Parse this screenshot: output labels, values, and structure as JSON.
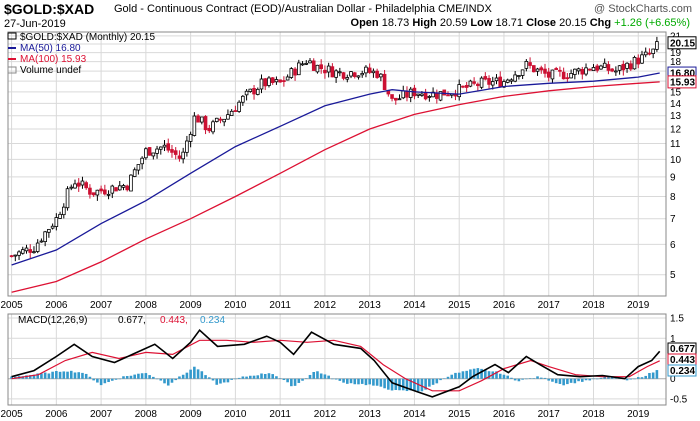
{
  "header": {
    "symbol": "$GOLD:$XAD",
    "description": "Gold - Continuous Contract (EOD)/Australian Dollar - Philadelphia CME/INDX",
    "watermark": "@ StockCharts.com",
    "date": "27-Jun-2019",
    "open_label": "Open",
    "open": "18.73",
    "high_label": "High",
    "high": "20.59",
    "low_label": "Low",
    "low": "18.71",
    "close_label": "Close",
    "close": "20.15",
    "chg_label": "Chg",
    "chg": "+1.26 (+6.65%)"
  },
  "legend": {
    "price": "$GOLD:$XAD (Monthly) 20.15",
    "ma50": "MA(50) 16.80",
    "ma100": "MA(100) 15.93",
    "volume": "Volume undef"
  },
  "macd_legend": {
    "label": "MACD(12,26,9)",
    "macd": "0.677,",
    "signal": "0.443,",
    "hist": "0.234"
  },
  "colors": {
    "ma50": "#1a1a99",
    "ma100": "#dd1133",
    "up": "#000000",
    "down": "#cc1133",
    "hist": "#3399cc",
    "grid": "#d9d9d9"
  },
  "chart_data": [
    {
      "type": "candlestick",
      "title": "$GOLD:$XAD (Monthly) 20.15",
      "x_ticks": [
        "2005",
        "2006",
        "2007",
        "2008",
        "2009",
        "2010",
        "2011",
        "2012",
        "2013",
        "2014",
        "2015",
        "2016",
        "2017",
        "2018",
        "2019"
      ],
      "y_ticks": [
        5,
        6,
        7,
        8,
        9,
        10,
        11,
        12,
        13,
        14,
        15,
        16,
        17,
        18,
        19,
        20,
        21
      ],
      "ylim": [
        4.4,
        21.5
      ],
      "y_scale": "log",
      "anchors_close": [
        [
          2005.0,
          5.6
        ],
        [
          2005.5,
          5.9
        ],
        [
          2006.0,
          7.0
        ],
        [
          2006.4,
          8.8
        ],
        [
          2006.8,
          8.2
        ],
        [
          2007.2,
          8.4
        ],
        [
          2007.6,
          8.6
        ],
        [
          2008.0,
          10.5
        ],
        [
          2008.4,
          10.8
        ],
        [
          2008.8,
          10.0
        ],
        [
          2009.1,
          13.0
        ],
        [
          2009.4,
          12.0
        ],
        [
          2009.8,
          13.0
        ],
        [
          2010.2,
          14.5
        ],
        [
          2010.6,
          15.8
        ],
        [
          2011.0,
          15.8
        ],
        [
          2011.6,
          18.2
        ],
        [
          2011.8,
          17.5
        ],
        [
          2012.3,
          16.8
        ],
        [
          2012.8,
          17.0
        ],
        [
          2013.2,
          16.8
        ],
        [
          2013.5,
          14.2
        ],
        [
          2014.0,
          15.0
        ],
        [
          2014.5,
          14.8
        ],
        [
          2015.0,
          15.2
        ],
        [
          2015.5,
          15.8
        ],
        [
          2016.0,
          16.0
        ],
        [
          2016.5,
          17.6
        ],
        [
          2017.0,
          16.5
        ],
        [
          2017.5,
          16.8
        ],
        [
          2018.0,
          17.5
        ],
        [
          2018.5,
          17.0
        ],
        [
          2019.0,
          18.2
        ],
        [
          2019.3,
          18.9
        ],
        [
          2019.48,
          20.15
        ]
      ],
      "ma50": [
        [
          2005.0,
          5.3
        ],
        [
          2006.0,
          5.8
        ],
        [
          2007.0,
          6.8
        ],
        [
          2008.0,
          7.8
        ],
        [
          2009.0,
          9.2
        ],
        [
          2010.0,
          10.8
        ],
        [
          2011.0,
          12.2
        ],
        [
          2012.0,
          13.8
        ],
        [
          2013.0,
          14.8
        ],
        [
          2013.5,
          15.2
        ],
        [
          2014.0,
          15.0
        ],
        [
          2015.0,
          14.8
        ],
        [
          2016.0,
          15.5
        ],
        [
          2017.0,
          15.8
        ],
        [
          2018.0,
          16.0
        ],
        [
          2019.0,
          16.4
        ],
        [
          2019.48,
          16.8
        ]
      ],
      "ma100": [
        [
          2005.0,
          4.5
        ],
        [
          2006.0,
          4.8
        ],
        [
          2007.0,
          5.4
        ],
        [
          2008.0,
          6.2
        ],
        [
          2009.0,
          7.0
        ],
        [
          2010.0,
          8.0
        ],
        [
          2011.0,
          9.2
        ],
        [
          2012.0,
          10.6
        ],
        [
          2013.0,
          12.0
        ],
        [
          2014.0,
          13.1
        ],
        [
          2015.0,
          13.9
        ],
        [
          2016.0,
          14.6
        ],
        [
          2017.0,
          15.1
        ],
        [
          2018.0,
          15.5
        ],
        [
          2019.0,
          15.8
        ],
        [
          2019.48,
          15.93
        ]
      ],
      "last_labels": [
        {
          "value": "20.15",
          "color": "#000000"
        },
        {
          "value": "16.80",
          "color": "#1a1a99"
        },
        {
          "value": "15.93",
          "color": "#dd1133"
        }
      ]
    },
    {
      "type": "macd",
      "title": "MACD(12,26,9)",
      "y_ticks": [
        -0.5,
        0.0,
        0.5,
        1.0,
        1.5
      ],
      "ylim": [
        -0.65,
        1.6
      ],
      "macd": [
        [
          2005.0,
          0.05
        ],
        [
          2005.5,
          0.2
        ],
        [
          2006.0,
          0.55
        ],
        [
          2006.4,
          0.85
        ],
        [
          2006.8,
          0.55
        ],
        [
          2007.3,
          0.4
        ],
        [
          2007.7,
          0.6
        ],
        [
          2008.2,
          0.85
        ],
        [
          2008.6,
          0.5
        ],
        [
          2009.0,
          0.9
        ],
        [
          2009.2,
          1.2
        ],
        [
          2009.6,
          0.8
        ],
        [
          2010.2,
          0.85
        ],
        [
          2010.7,
          1.05
        ],
        [
          2011.0,
          0.9
        ],
        [
          2011.3,
          0.6
        ],
        [
          2011.7,
          1.15
        ],
        [
          2012.2,
          0.85
        ],
        [
          2012.8,
          0.75
        ],
        [
          2013.1,
          0.45
        ],
        [
          2013.5,
          -0.1
        ],
        [
          2014.0,
          -0.3
        ],
        [
          2014.4,
          -0.45
        ],
        [
          2015.0,
          -0.2
        ],
        [
          2015.3,
          0.05
        ],
        [
          2015.8,
          0.35
        ],
        [
          2016.1,
          0.15
        ],
        [
          2016.5,
          0.55
        ],
        [
          2016.8,
          0.35
        ],
        [
          2017.2,
          0.1
        ],
        [
          2017.7,
          0.05
        ],
        [
          2018.2,
          0.08
        ],
        [
          2018.7,
          0.0
        ],
        [
          2019.0,
          0.3
        ],
        [
          2019.3,
          0.45
        ],
        [
          2019.48,
          0.677
        ]
      ],
      "signal": [
        [
          2005.0,
          0.0
        ],
        [
          2005.6,
          0.1
        ],
        [
          2006.2,
          0.45
        ],
        [
          2006.8,
          0.65
        ],
        [
          2007.4,
          0.5
        ],
        [
          2008.0,
          0.65
        ],
        [
          2008.6,
          0.6
        ],
        [
          2009.2,
          0.95
        ],
        [
          2009.8,
          0.95
        ],
        [
          2010.4,
          0.9
        ],
        [
          2011.0,
          0.95
        ],
        [
          2011.6,
          0.9
        ],
        [
          2012.2,
          0.95
        ],
        [
          2012.8,
          0.8
        ],
        [
          2013.3,
          0.35
        ],
        [
          2013.8,
          0.0
        ],
        [
          2014.4,
          -0.3
        ],
        [
          2015.0,
          -0.3
        ],
        [
          2015.5,
          -0.05
        ],
        [
          2016.0,
          0.25
        ],
        [
          2016.6,
          0.45
        ],
        [
          2017.0,
          0.3
        ],
        [
          2017.6,
          0.1
        ],
        [
          2018.2,
          0.05
        ],
        [
          2018.8,
          0.05
        ],
        [
          2019.2,
          0.3
        ],
        [
          2019.48,
          0.443
        ]
      ],
      "histogram_anchors": [
        [
          2005.0,
          0.05
        ],
        [
          2005.5,
          0.1
        ],
        [
          2006.2,
          0.2
        ],
        [
          2006.6,
          0.15
        ],
        [
          2007.0,
          -0.15
        ],
        [
          2007.5,
          0.05
        ],
        [
          2008.0,
          0.15
        ],
        [
          2008.5,
          -0.15
        ],
        [
          2009.1,
          0.3
        ],
        [
          2009.6,
          -0.15
        ],
        [
          2010.2,
          0.05
        ],
        [
          2010.8,
          0.15
        ],
        [
          2011.3,
          -0.2
        ],
        [
          2011.8,
          0.2
        ],
        [
          2012.4,
          -0.1
        ],
        [
          2013.0,
          -0.15
        ],
        [
          2013.6,
          -0.3
        ],
        [
          2014.2,
          -0.3
        ],
        [
          2014.8,
          0.1
        ],
        [
          2015.4,
          0.25
        ],
        [
          2015.9,
          0.15
        ],
        [
          2016.3,
          -0.05
        ],
        [
          2016.8,
          0.05
        ],
        [
          2017.3,
          -0.15
        ],
        [
          2017.8,
          -0.05
        ],
        [
          2018.4,
          0.05
        ],
        [
          2018.8,
          -0.05
        ],
        [
          2019.2,
          0.1
        ],
        [
          2019.48,
          0.234
        ]
      ],
      "last_labels": [
        {
          "value": "0.677",
          "color": "#000000"
        },
        {
          "value": "0.443",
          "color": "#dd1133"
        },
        {
          "value": "0.234",
          "color": "#3399cc"
        }
      ]
    }
  ]
}
